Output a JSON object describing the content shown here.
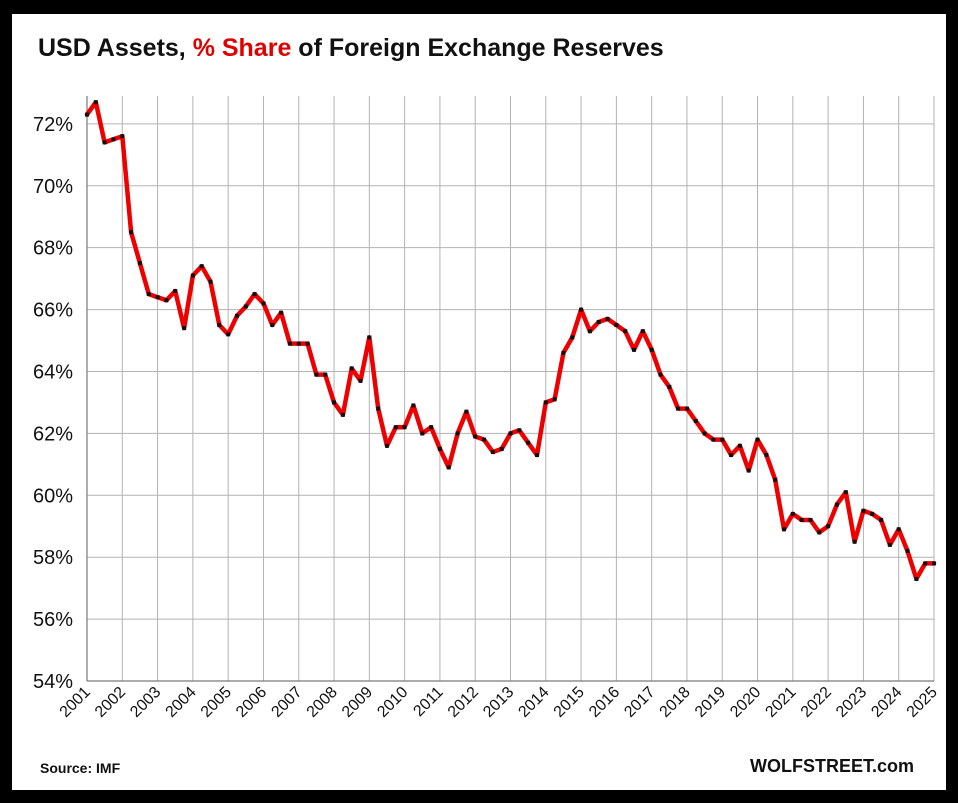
{
  "title": {
    "part1": "USD Assets, ",
    "part2": "% Share",
    "part3": " of Foreign Exchange Reserves"
  },
  "footer": {
    "source": "Source: IMF",
    "brand": "WOLFSTREET.com"
  },
  "colors": {
    "line": "#ee0000",
    "marker": "#111111",
    "grid": "#b3b3b3",
    "title_highlight": "#e00000"
  },
  "chart_data": {
    "type": "line",
    "title": "USD Assets, % Share of Foreign Exchange Reserves",
    "xlabel": "",
    "ylabel": "",
    "ylim": [
      54,
      72.9
    ],
    "yticks": [
      54,
      56,
      58,
      60,
      62,
      64,
      66,
      68,
      70,
      72
    ],
    "ytick_labels": [
      "54%",
      "56%",
      "58%",
      "60%",
      "62%",
      "64%",
      "66%",
      "68%",
      "70%",
      "72%"
    ],
    "xticks": [
      "2001",
      "2002",
      "2003",
      "2004",
      "2005",
      "2006",
      "2007",
      "2008",
      "2009",
      "2010",
      "2011",
      "2012",
      "2013",
      "2014",
      "2015",
      "2016",
      "2017",
      "2018",
      "2019",
      "2020",
      "2021",
      "2022",
      "2023",
      "2024",
      "2025"
    ],
    "x_start_year": 2001,
    "points_per_year": 4,
    "grid": true,
    "series": [
      {
        "values": [
          72.3,
          72.7,
          71.4,
          71.5,
          71.6,
          68.5,
          67.5,
          66.5,
          66.4,
          66.3,
          66.6,
          65.4,
          67.1,
          67.4,
          66.9,
          65.5,
          65.2,
          65.8,
          66.1,
          66.5,
          66.2,
          65.5,
          65.9,
          64.9,
          64.9,
          64.9,
          63.9,
          63.9,
          63.0,
          62.6,
          64.1,
          63.7,
          65.1,
          62.8,
          61.6,
          62.2,
          62.2,
          62.9,
          62.0,
          62.2,
          61.5,
          60.9,
          62.0,
          62.7,
          61.9,
          61.8,
          61.4,
          61.5,
          62.0,
          62.1,
          61.7,
          61.3,
          63.0,
          63.1,
          64.6,
          65.1,
          66.0,
          65.3,
          65.6,
          65.7,
          65.5,
          65.3,
          64.7,
          65.3,
          64.7,
          63.9,
          63.5,
          62.8,
          62.8,
          62.4,
          62.0,
          61.8,
          61.8,
          61.3,
          61.6,
          60.8,
          61.8,
          61.3,
          60.5,
          58.9,
          59.4,
          59.2,
          59.2,
          58.8,
          59.0,
          59.7,
          60.1,
          58.5,
          59.5,
          59.4,
          59.2,
          58.4,
          58.9,
          58.2,
          57.3,
          57.8,
          57.8
        ]
      }
    ]
  }
}
